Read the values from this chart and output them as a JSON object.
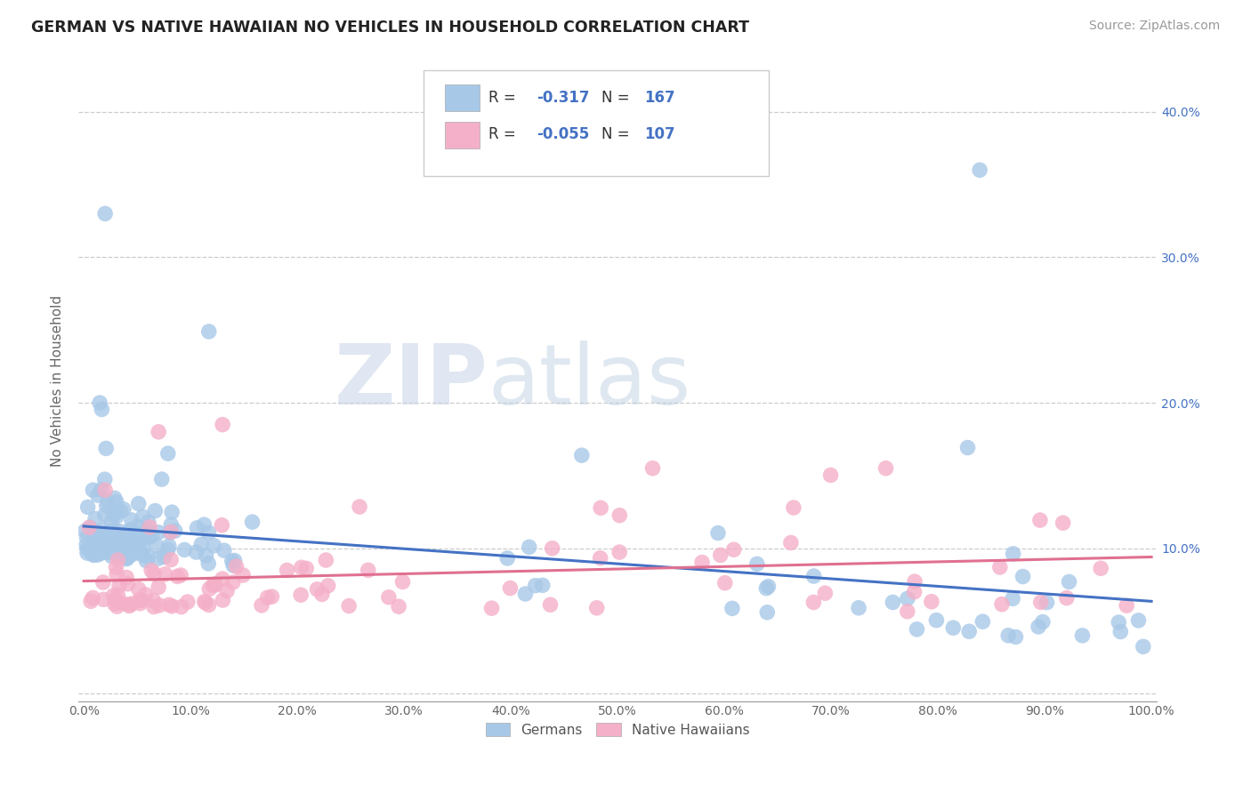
{
  "title": "GERMAN VS NATIVE HAWAIIAN NO VEHICLES IN HOUSEHOLD CORRELATION CHART",
  "source": "Source: ZipAtlas.com",
  "ylabel": "No Vehicles in Household",
  "german_R": -0.317,
  "german_N": 167,
  "hawaiian_R": -0.055,
  "hawaiian_N": 107,
  "german_color": "#a8c8e8",
  "hawaiian_color": "#f4b0c8",
  "german_line_color": "#4472c4",
  "hawaiian_line_color": "#e07090",
  "background_color": "#ffffff",
  "legend_text_color": "#4472c4",
  "legend_label_color": "#333333",
  "right_axis_color": "#4472c4",
  "watermark_zip_color": "#d0d8e8",
  "watermark_atlas_color": "#c8d0e0"
}
